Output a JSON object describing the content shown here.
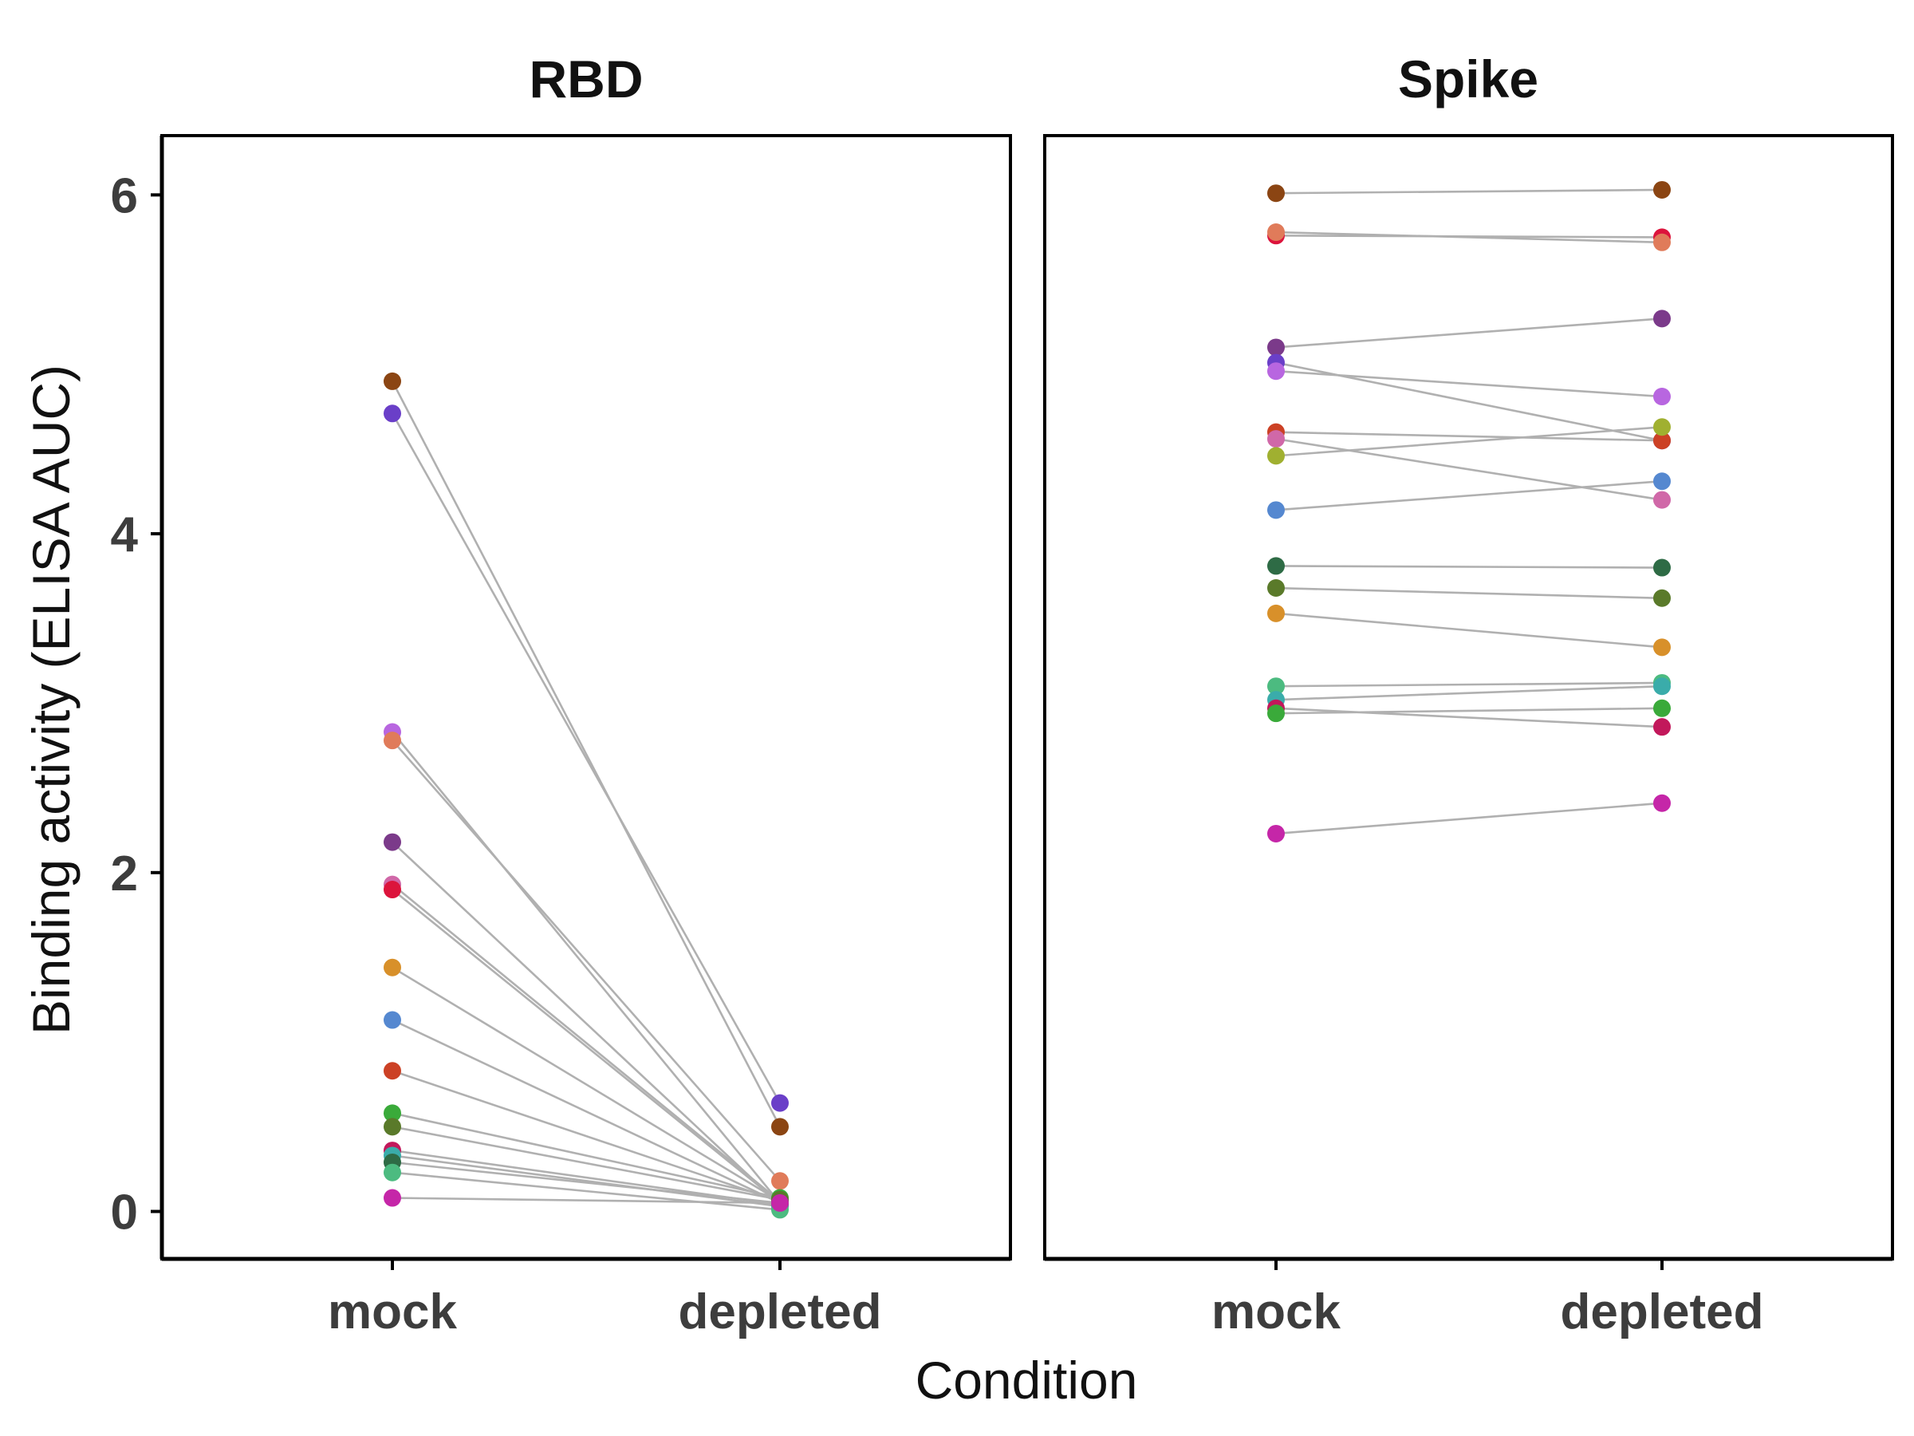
{
  "chart_data": {
    "type": "scatter",
    "ylabel": "Binding activity (ELISA AUC)",
    "xlabel": "Condition",
    "x_categories": [
      "mock",
      "depleted"
    ],
    "ylim": [
      -0.28,
      6.35
    ],
    "y_ticks": [
      0,
      2,
      4,
      6
    ],
    "grid": false,
    "legend": "none",
    "panels": [
      {
        "title": "RBD",
        "subjects": [
          {
            "color": "#8b4513",
            "mock": 4.9,
            "depleted": 0.5
          },
          {
            "color": "#6a3fc8",
            "mock": 4.71,
            "depleted": 0.64
          },
          {
            "color": "#b866e0",
            "mock": 2.83,
            "depleted": 0.05
          },
          {
            "color": "#e07b5a",
            "mock": 2.78,
            "depleted": 0.18
          },
          {
            "color": "#7b3a8a",
            "mock": 2.18,
            "depleted": 0.04
          },
          {
            "color": "#d068a8",
            "mock": 1.93,
            "depleted": 0.06
          },
          {
            "color": "#dc143c",
            "mock": 1.9,
            "depleted": 0.05
          },
          {
            "color": "#d8902a",
            "mock": 1.44,
            "depleted": 0.06
          },
          {
            "color": "#5588d0",
            "mock": 1.13,
            "depleted": 0.05
          },
          {
            "color": "#cc4125",
            "mock": 0.83,
            "depleted": 0.06
          },
          {
            "color": "#3aaa3a",
            "mock": 0.58,
            "depleted": 0.08
          },
          {
            "color": "#5a7a2a",
            "mock": 0.5,
            "depleted": 0.07
          },
          {
            "color": "#c2185b",
            "mock": 0.36,
            "depleted": 0.04
          },
          {
            "color": "#3aacaa",
            "mock": 0.33,
            "depleted": 0.03
          },
          {
            "color": "#2e6b45",
            "mock": 0.29,
            "depleted": 0.05
          },
          {
            "color": "#4cbb80",
            "mock": 0.23,
            "depleted": 0.01
          },
          {
            "color": "#c526a8",
            "mock": 0.08,
            "depleted": 0.05
          }
        ]
      },
      {
        "title": "Spike",
        "subjects": [
          {
            "color": "#8b4513",
            "mock": 6.01,
            "depleted": 6.03
          },
          {
            "color": "#dc143c",
            "mock": 5.76,
            "depleted": 5.75
          },
          {
            "color": "#e07b5a",
            "mock": 5.78,
            "depleted": 5.72
          },
          {
            "color": "#7b3a8a",
            "mock": 5.1,
            "depleted": 5.27
          },
          {
            "color": "#6a3fc8",
            "mock": 5.01,
            "depleted": 4.55
          },
          {
            "color": "#b866e0",
            "mock": 4.96,
            "depleted": 4.81
          },
          {
            "color": "#cc4125",
            "mock": 4.6,
            "depleted": 4.55
          },
          {
            "color": "#d068a8",
            "mock": 4.56,
            "depleted": 4.2
          },
          {
            "color": "#a0b030",
            "mock": 4.46,
            "depleted": 4.63
          },
          {
            "color": "#5588d0",
            "mock": 4.14,
            "depleted": 4.31
          },
          {
            "color": "#2e6b45",
            "mock": 3.81,
            "depleted": 3.8
          },
          {
            "color": "#5a7a2a",
            "mock": 3.68,
            "depleted": 3.62
          },
          {
            "color": "#d8902a",
            "mock": 3.53,
            "depleted": 3.33
          },
          {
            "color": "#4cbb80",
            "mock": 3.1,
            "depleted": 3.12
          },
          {
            "color": "#3aacaa",
            "mock": 3.02,
            "depleted": 3.1
          },
          {
            "color": "#c2185b",
            "mock": 2.97,
            "depleted": 2.86
          },
          {
            "color": "#3aaa3a",
            "mock": 2.94,
            "depleted": 2.97
          },
          {
            "color": "#c526a8",
            "mock": 2.23,
            "depleted": 2.41
          }
        ]
      }
    ]
  }
}
